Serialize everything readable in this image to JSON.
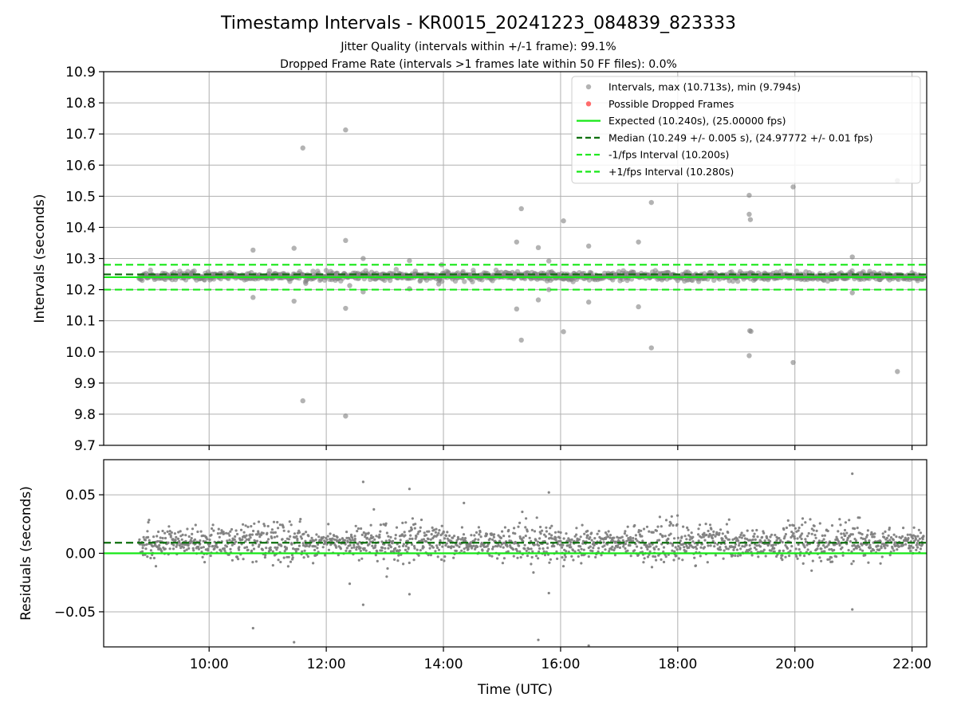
{
  "figure": {
    "title": "Timestamp Intervals - KR0015_20241223_084839_823333",
    "subtitle_1": "Jitter Quality (intervals within +/-1 frame): 99.1%",
    "subtitle_2": "Dropped Frame Rate (intervals >1 frames late within 50 FF files): 0.0%"
  },
  "colors": {
    "points": "#808080",
    "dropped": "#ff3b3b",
    "expected": "#16e816",
    "median": "#0c6e0c",
    "fps_bounds": "#16e816"
  },
  "chart_data": [
    {
      "type": "scatter",
      "panel": "top",
      "xlabel": "",
      "ylabel": "Intervals (seconds)",
      "xlim_hours": [
        8.2,
        22.25
      ],
      "ylim": [
        9.7,
        10.9
      ],
      "yticks": [
        9.7,
        9.8,
        9.9,
        10.0,
        10.1,
        10.2,
        10.3,
        10.4,
        10.5,
        10.6,
        10.7,
        10.8,
        10.9
      ],
      "ytick_labels": [
        "9.7",
        "9.8",
        "9.9",
        "10.0",
        "10.1",
        "10.2",
        "10.3",
        "10.4",
        "10.5",
        "10.6",
        "10.7",
        "10.8",
        "10.9"
      ],
      "xticks_hours": [
        10,
        12,
        14,
        16,
        18,
        20,
        22
      ],
      "grid": true,
      "legend_position": "top-right",
      "legend": [
        {
          "label": "Intervals, max (10.713s), min (9.794s)",
          "style": "marker-grey"
        },
        {
          "label": "Possible Dropped Frames",
          "style": "marker-red"
        },
        {
          "label": "Expected (10.240s), (25.00000 fps)",
          "style": "line-solid-green"
        },
        {
          "label": "Median (10.249 +/- 0.005 s), (24.97772 +/- 0.01 fps)",
          "style": "line-dashed-darkgreen"
        },
        {
          "label": "-1/fps Interval (10.200s)",
          "style": "line-dashed-green"
        },
        {
          "label": "+1/fps Interval (10.280s)",
          "style": "line-dashed-green"
        }
      ],
      "reference_lines": {
        "expected": 10.24,
        "median": 10.249,
        "lower_fps": 10.2,
        "upper_fps": 10.28
      },
      "data_range_hours": [
        8.8,
        22.2
      ],
      "band": {
        "center": 10.243,
        "spread": 0.012
      },
      "outliers": [
        {
          "t": 10.75,
          "y": 10.327
        },
        {
          "t": 10.75,
          "y": 10.175
        },
        {
          "t": 11.45,
          "y": 10.333
        },
        {
          "t": 11.45,
          "y": 10.163
        },
        {
          "t": 11.6,
          "y": 10.655
        },
        {
          "t": 11.6,
          "y": 9.843
        },
        {
          "t": 11.65,
          "y": 10.22
        },
        {
          "t": 12.33,
          "y": 10.713
        },
        {
          "t": 12.33,
          "y": 9.794
        },
        {
          "t": 12.33,
          "y": 10.358
        },
        {
          "t": 12.33,
          "y": 10.14
        },
        {
          "t": 12.4,
          "y": 10.213
        },
        {
          "t": 12.63,
          "y": 10.3
        },
        {
          "t": 12.63,
          "y": 10.193
        },
        {
          "t": 13.42,
          "y": 10.293
        },
        {
          "t": 13.42,
          "y": 10.203
        },
        {
          "t": 13.92,
          "y": 10.218
        },
        {
          "t": 13.97,
          "y": 10.28
        },
        {
          "t": 15.25,
          "y": 10.353
        },
        {
          "t": 15.25,
          "y": 10.138
        },
        {
          "t": 15.33,
          "y": 10.46
        },
        {
          "t": 15.33,
          "y": 10.038
        },
        {
          "t": 15.62,
          "y": 10.335
        },
        {
          "t": 15.62,
          "y": 10.167
        },
        {
          "t": 15.8,
          "y": 10.292
        },
        {
          "t": 15.8,
          "y": 10.2
        },
        {
          "t": 16.05,
          "y": 10.421
        },
        {
          "t": 16.05,
          "y": 10.065
        },
        {
          "t": 16.48,
          "y": 10.34
        },
        {
          "t": 16.48,
          "y": 10.16
        },
        {
          "t": 17.33,
          "y": 10.353
        },
        {
          "t": 17.33,
          "y": 10.145
        },
        {
          "t": 17.55,
          "y": 10.48
        },
        {
          "t": 17.55,
          "y": 10.013
        },
        {
          "t": 19.22,
          "y": 10.503
        },
        {
          "t": 19.22,
          "y": 10.442
        },
        {
          "t": 19.24,
          "y": 10.425
        },
        {
          "t": 19.23,
          "y": 10.068
        },
        {
          "t": 19.25,
          "y": 10.066
        },
        {
          "t": 19.22,
          "y": 9.988
        },
        {
          "t": 19.97,
          "y": 10.53
        },
        {
          "t": 19.97,
          "y": 9.966
        },
        {
          "t": 20.98,
          "y": 10.305
        },
        {
          "t": 20.98,
          "y": 10.19
        },
        {
          "t": 21.75,
          "y": 10.55
        },
        {
          "t": 21.75,
          "y": 9.937
        }
      ]
    },
    {
      "type": "scatter",
      "panel": "bottom",
      "xlabel": "Time (UTC)",
      "ylabel": "Residuals (seconds)",
      "xlim_hours": [
        8.2,
        22.25
      ],
      "ylim": [
        -0.08,
        0.08
      ],
      "yticks": [
        -0.05,
        0.0,
        0.05
      ],
      "ytick_labels": [
        "−0.05",
        "0.00",
        "0.05"
      ],
      "xticks_hours": [
        10,
        12,
        14,
        16,
        18,
        20,
        22
      ],
      "xtick_labels": [
        "10:00",
        "12:00",
        "14:00",
        "16:00",
        "18:00",
        "20:00",
        "22:00"
      ],
      "grid": true,
      "reference_lines": {
        "median_offset": 0.009,
        "zero": 0.0
      },
      "data_range_hours": [
        8.8,
        22.2
      ],
      "band": {
        "center": 0.009,
        "spread": 0.007
      },
      "outliers": [
        {
          "t": 10.75,
          "y": -0.064
        },
        {
          "t": 11.45,
          "y": -0.076
        },
        {
          "t": 12.4,
          "y": -0.026
        },
        {
          "t": 12.63,
          "y": 0.061
        },
        {
          "t": 12.63,
          "y": -0.044
        },
        {
          "t": 13.42,
          "y": 0.055
        },
        {
          "t": 13.42,
          "y": -0.035
        },
        {
          "t": 14.35,
          "y": 0.043
        },
        {
          "t": 15.62,
          "y": -0.074
        },
        {
          "t": 15.8,
          "y": 0.052
        },
        {
          "t": 15.8,
          "y": -0.034
        },
        {
          "t": 16.48,
          "y": -0.079
        },
        {
          "t": 20.98,
          "y": 0.068
        },
        {
          "t": 20.98,
          "y": -0.048
        }
      ]
    }
  ]
}
